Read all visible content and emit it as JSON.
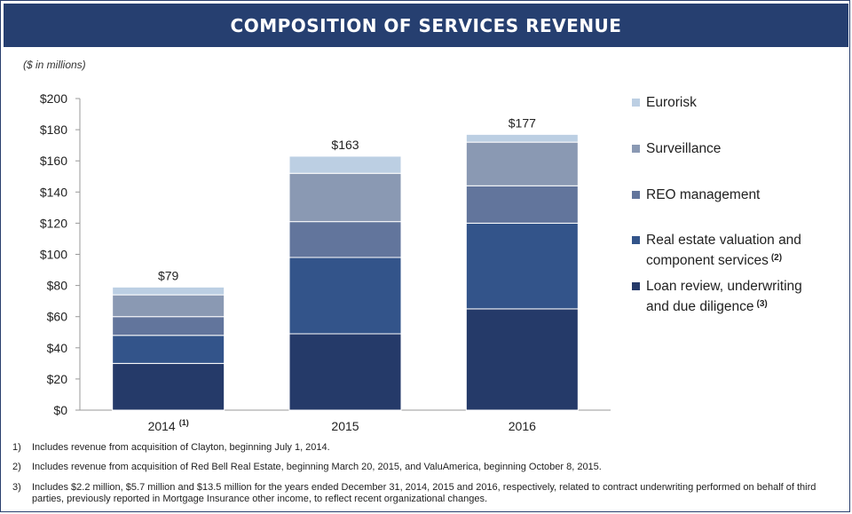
{
  "title": "COMPOSITION OF SERVICES REVENUE",
  "units": "($ in millions)",
  "chart_data": {
    "type": "bar",
    "stacked": true,
    "categories": [
      "2014",
      "2015",
      "2016"
    ],
    "category_superscripts": [
      "(1)",
      "",
      ""
    ],
    "series": [
      {
        "name": "Loan review, underwriting and due diligence",
        "legend_line1": "Loan review, underwriting",
        "legend_line2": "and due diligence",
        "superscript": "(3)",
        "color": "#253a69",
        "values": [
          30,
          49,
          65
        ]
      },
      {
        "name": "Real estate valuation and component services",
        "legend_line1": "Real estate valuation and",
        "legend_line2": "component services",
        "superscript": "(2)",
        "color": "#33548a",
        "values": [
          18,
          49,
          55
        ]
      },
      {
        "name": "REO management",
        "legend_line1": "REO management",
        "legend_line2": "",
        "superscript": "",
        "color": "#62759c",
        "values": [
          12,
          23,
          24
        ]
      },
      {
        "name": "Surveillance",
        "legend_line1": "Surveillance",
        "legend_line2": "",
        "superscript": "",
        "color": "#8a99b3",
        "values": [
          14,
          31,
          28
        ]
      },
      {
        "name": "Eurorisk",
        "legend_line1": "Eurorisk",
        "legend_line2": "",
        "superscript": "",
        "color": "#bccfe3",
        "values": [
          5,
          11,
          5
        ]
      }
    ],
    "totals": [
      "$79",
      "$163",
      "$177"
    ],
    "ylim": [
      0,
      200
    ],
    "yticks": [
      0,
      20,
      40,
      60,
      80,
      100,
      120,
      140,
      160,
      180,
      200
    ],
    "ytick_labels": [
      "$0",
      "$20",
      "$40",
      "$60",
      "$80",
      "$100",
      "$120",
      "$140",
      "$160",
      "$180",
      "$200"
    ],
    "grid": false,
    "legend_position": "right"
  },
  "footnotes": [
    {
      "num": "1)",
      "text": "Includes revenue from acquisition of Clayton, beginning July 1, 2014."
    },
    {
      "num": "2)",
      "text": "Includes revenue from acquisition of Red Bell Real Estate, beginning March 20, 2015, and ValuAmerica, beginning October 8, 2015."
    },
    {
      "num": "3)",
      "text": "Includes $2.2 million, $5.7 million and $13.5 million for the years ended December 31, 2014, 2015 and 2016, respectively, related to contract underwriting performed on behalf of third parties, previously reported in Mortgage Insurance other income, to reflect recent organizational changes."
    }
  ]
}
